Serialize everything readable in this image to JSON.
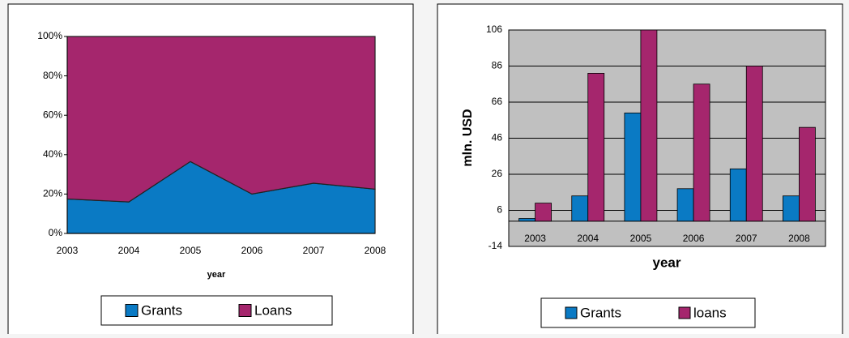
{
  "chart_data": [
    {
      "type": "stacked_area",
      "x_label": "year",
      "categories": [
        "2003",
        "2004",
        "2005",
        "2006",
        "2007",
        "2008"
      ],
      "series": [
        {
          "name": "Grants",
          "color": "#0a7ac4",
          "values": [
            17.5,
            16,
            36.5,
            20,
            25.5,
            22.5
          ]
        },
        {
          "name": "Loans",
          "color": "#a5266d",
          "values": [
            82.5,
            84,
            63.5,
            80,
            74.5,
            77.5
          ]
        }
      ],
      "ylim": [
        0,
        100
      ],
      "yticks": [
        {
          "value": 0,
          "label": "0%"
        },
        {
          "value": 20,
          "label": "20%"
        },
        {
          "value": 40,
          "label": "40%"
        },
        {
          "value": 60,
          "label": "60%"
        },
        {
          "value": 80,
          "label": "80%"
        },
        {
          "value": 100,
          "label": "100%"
        }
      ]
    },
    {
      "type": "bar",
      "x_label": "year",
      "y_label": "mln. USD",
      "categories": [
        "2003",
        "2004",
        "2005",
        "2006",
        "2007",
        "2008"
      ],
      "series": [
        {
          "name": "Grants",
          "color": "#0a7ac4",
          "values": [
            1.5,
            14,
            60,
            18,
            29,
            14
          ]
        },
        {
          "name": "loans",
          "color": "#a5266d",
          "values": [
            10,
            82,
            106,
            76,
            86,
            52
          ]
        }
      ],
      "ylim": [
        -14,
        106
      ],
      "yticks": [
        -14,
        6,
        26,
        46,
        66,
        86,
        106
      ],
      "grid": true
    }
  ]
}
